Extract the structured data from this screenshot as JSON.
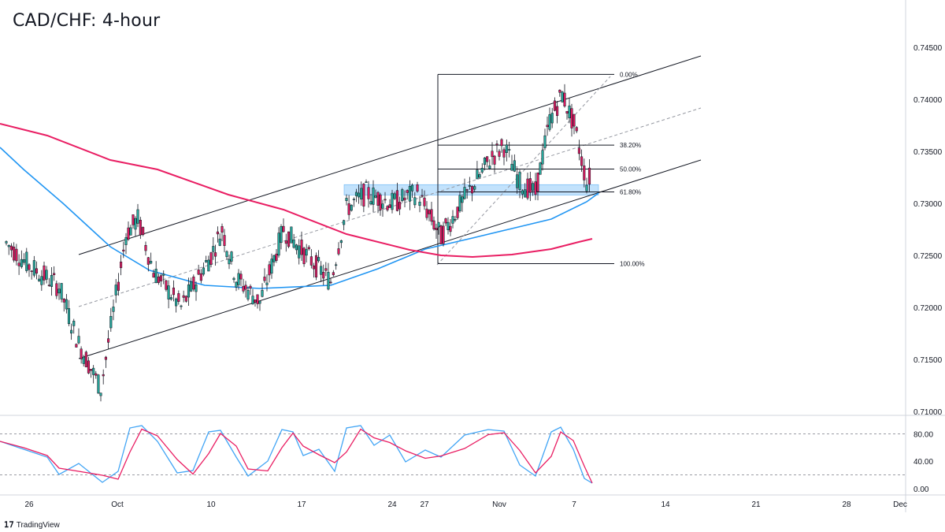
{
  "header": {
    "title": "CAD/CHF: 4-hour"
  },
  "brand": {
    "label": "TradingView"
  },
  "colors": {
    "bull": "#26a69a",
    "bear": "#d81b60",
    "ma_fast": "#2196f3",
    "ma_slow": "#e91e63",
    "stoch_k": "#42a5f5",
    "stoch_d": "#e91e63",
    "zone": "#90caf9"
  },
  "chart_data": {
    "type": "candlestick",
    "title": "CAD/CHF: 4-hour",
    "price_axis": {
      "ticks": [
        "0.74500",
        "0.74000",
        "0.73500",
        "0.73000",
        "0.72500",
        "0.72000",
        "0.71500",
        "0.71000"
      ],
      "values": [
        0.745,
        0.74,
        0.735,
        0.73,
        0.725,
        0.72,
        0.715,
        0.71
      ]
    },
    "time_axis": {
      "ticks": [
        "26",
        "Oct",
        "10",
        "17",
        "24",
        "27",
        "Nov",
        "7",
        "14",
        "21",
        "28",
        "Dec"
      ]
    },
    "price_path": [
      {
        "x": "Sep 23",
        "close": 0.7262
      },
      {
        "x": "Sep 26",
        "close": 0.724
      },
      {
        "x": "Sep 28",
        "close": 0.722
      },
      {
        "x": "Sep 29",
        "close": 0.7165
      },
      {
        "x": "Sep 30",
        "close": 0.7122
      },
      {
        "x": "Oct 3",
        "close": 0.727
      },
      {
        "x": "Oct 4",
        "close": 0.7285
      },
      {
        "x": "Oct 5",
        "close": 0.7235
      },
      {
        "x": "Oct 7",
        "close": 0.72
      },
      {
        "x": "Oct 10",
        "close": 0.725
      },
      {
        "x": "Oct 11",
        "close": 0.7275
      },
      {
        "x": "Oct 12",
        "close": 0.7228
      },
      {
        "x": "Oct 14",
        "close": 0.7205
      },
      {
        "x": "Oct 17",
        "close": 0.7275
      },
      {
        "x": "Oct 18",
        "close": 0.7255
      },
      {
        "x": "Oct 19",
        "close": 0.7225
      },
      {
        "x": "Oct 20",
        "close": 0.7295
      },
      {
        "x": "Oct 21",
        "close": 0.731
      },
      {
        "x": "Oct 24",
        "close": 0.73
      },
      {
        "x": "Oct 26",
        "close": 0.731
      },
      {
        "x": "Oct 27",
        "close": 0.7268
      },
      {
        "x": "Oct 28",
        "close": 0.7305
      },
      {
        "x": "Oct 31",
        "close": 0.7345
      },
      {
        "x": "Nov 1",
        "close": 0.7355
      },
      {
        "x": "Nov 2",
        "close": 0.732
      },
      {
        "x": "Nov 3",
        "close": 0.731
      },
      {
        "x": "Nov 4",
        "close": 0.738
      },
      {
        "x": "Nov 6",
        "close": 0.7405
      },
      {
        "x": "Nov 7",
        "close": 0.7375
      },
      {
        "x": "Nov 8",
        "close": 0.732
      },
      {
        "x": "Nov 9",
        "close": 0.733
      }
    ],
    "support_zone": {
      "from": 0.7308,
      "to": 0.7318
    },
    "fibonacci": {
      "levels": [
        {
          "label": "0.00%",
          "price": 0.7424
        },
        {
          "label": "38.20%",
          "price": 0.7356
        },
        {
          "label": "50.00%",
          "price": 0.7333
        },
        {
          "label": "61.80%",
          "price": 0.7311
        },
        {
          "label": "100.00%",
          "price": 0.7242
        }
      ]
    },
    "moving_averages": [
      {
        "values_start": 0.7355,
        "values_end": 0.731
      },
      {
        "values_start": 0.7378,
        "values_end": 0.7263
      }
    ],
    "oscillator": {
      "ticks": [
        "80.00",
        "40.00",
        "0.00"
      ],
      "levels": [
        80,
        20
      ]
    }
  }
}
